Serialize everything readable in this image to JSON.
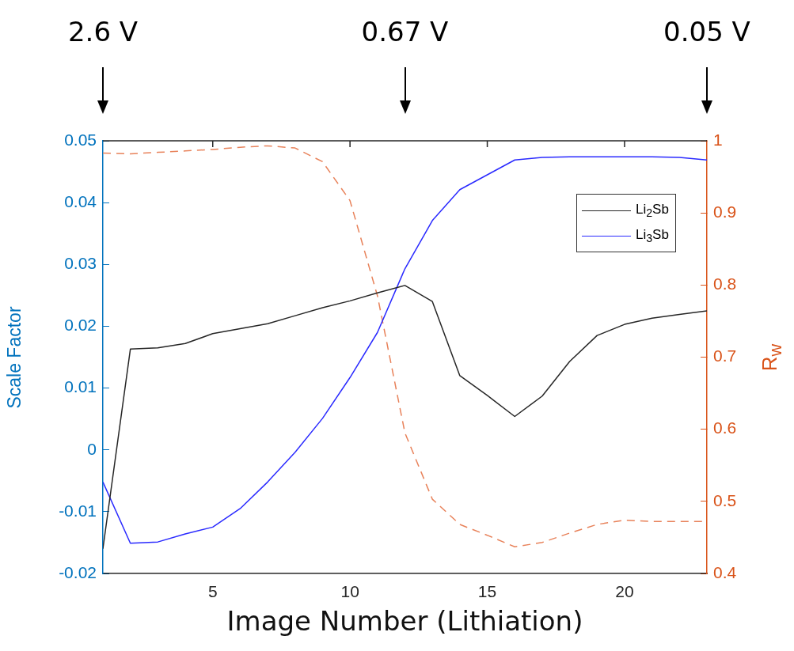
{
  "chart_data": {
    "type": "line",
    "xlabel": "Image Number (Lithiation)",
    "ylabel": "Scale Factor",
    "y2label": "R$_{w}$",
    "x": [
      1,
      2,
      3,
      4,
      5,
      6,
      7,
      8,
      9,
      10,
      11,
      12,
      13,
      14,
      15,
      16,
      17,
      18,
      19,
      20,
      21,
      22,
      23
    ],
    "xlim": [
      1,
      23
    ],
    "xticks": [
      5,
      10,
      15,
      20
    ],
    "ylim": [
      -0.02,
      0.05
    ],
    "yticks": [
      -0.02,
      -0.01,
      0,
      0.01,
      0.02,
      0.03,
      0.04,
      0.05
    ],
    "y2lim": [
      0.4,
      1
    ],
    "y2ticks": [
      0.4,
      0.5,
      0.6,
      0.7,
      0.8,
      0.9,
      1
    ],
    "grid": false,
    "legend": "top right",
    "marker": "none",
    "series": [
      {
        "name": "Li$_{2}$Sb",
        "color": "#262626",
        "values": [
          -0.016,
          0.0163,
          0.0165,
          0.0172,
          0.0188,
          0.0196,
          0.0204,
          0.0217,
          0.023,
          0.0241,
          0.0254,
          0.0266,
          0.024,
          0.012,
          0.0088,
          0.0054,
          0.0087,
          0.0143,
          0.0185,
          0.0203,
          0.0213,
          0.0219,
          0.0225
        ]
      },
      {
        "name": "Li$_{3}$Sb",
        "color": "#2a2aff",
        "values": [
          -0.0052,
          -0.0151,
          -0.0149,
          -0.0136,
          -0.0125,
          -0.0095,
          -0.0052,
          -0.0004,
          0.0051,
          0.0117,
          0.019,
          0.0293,
          0.0371,
          0.0421,
          0.0445,
          0.0469,
          0.0473,
          0.0474,
          0.0474,
          0.0474,
          0.0474,
          0.0473,
          0.0469
        ]
      },
      {
        "color": "#e8825a",
        "axis": "y2",
        "line_style": "dashed",
        "values": [
          0.983,
          0.982,
          0.984,
          0.986,
          0.988,
          0.991,
          0.993,
          0.99,
          0.971,
          0.917,
          0.785,
          0.595,
          0.503,
          0.468,
          0.453,
          0.437,
          0.443,
          0.456,
          0.468,
          0.474,
          0.472,
          0.472,
          0.472
        ]
      }
    ],
    "annotations": [
      "2.6 V",
      "0.67 V",
      "0.05 V"
    ]
  }
}
